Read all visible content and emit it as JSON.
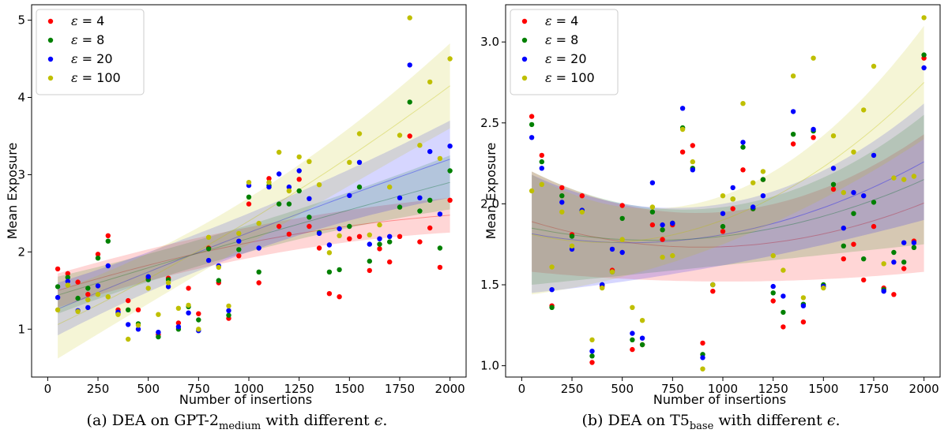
{
  "chart_data": [
    {
      "type": "scatter",
      "xlabel": "Number of insertions",
      "ylabel": "Mean Exposure",
      "xlim": [
        -80,
        2080
      ],
      "ylim": [
        0.38,
        5.2
      ],
      "xticks": [
        "0",
        "250",
        "500",
        "750",
        "1000",
        "1250",
        "1500",
        "1750",
        "2000"
      ],
      "yticks": [
        "1",
        "2",
        "3",
        "4",
        "5"
      ],
      "legend_position": "top-left",
      "grid": false,
      "caption": {
        "prefix": "(a)  DEA on GPT-2",
        "sub": "medium",
        "suffix": " with different ",
        "eps": "ϵ",
        "end": "."
      },
      "x": [
        50,
        100,
        150,
        200,
        250,
        300,
        350,
        400,
        450,
        500,
        550,
        600,
        650,
        700,
        750,
        800,
        850,
        900,
        950,
        1000,
        1050,
        1100,
        1150,
        1200,
        1250,
        1300,
        1350,
        1400,
        1450,
        1500,
        1550,
        1600,
        1650,
        1700,
        1750,
        1800,
        1850,
        1900,
        1950,
        2000
      ],
      "series": [
        {
          "name": "ε = 4",
          "color": "#ff0000",
          "values": [
            1.78,
            1.72,
            1.61,
            1.45,
            1.97,
            2.21,
            1.25,
            1.37,
            1.25,
            1.66,
            0.93,
            1.66,
            1.08,
            1.53,
            1.2,
            2.05,
            1.6,
            1.14,
            1.95,
            2.62,
            1.6,
            2.95,
            2.33,
            2.23,
            2.94,
            2.33,
            2.05,
            1.46,
            1.42,
            2.17,
            2.2,
            1.76,
            2.04,
            1.87,
            2.2,
            3.5,
            2.13,
            2.31,
            1.8,
            2.67
          ],
          "trend": [
            [
              1.28,
              1.72
            ],
            [
              1.92,
              2.32
            ],
            [
              2.25,
              2.7
            ]
          ],
          "trend_x": [
            50,
            1000,
            2000
          ]
        },
        {
          "name": "ε = 8",
          "color": "#008000",
          "values": [
            1.55,
            1.67,
            1.4,
            1.53,
            1.92,
            2.14,
            1.2,
            1.25,
            1.07,
            1.64,
            0.9,
            1.64,
            1.0,
            1.29,
            1.12,
            2.04,
            1.63,
            1.18,
            2.03,
            2.71,
            1.74,
            2.86,
            2.62,
            2.62,
            2.79,
            2.45,
            2.25,
            1.74,
            1.77,
            2.33,
            2.84,
            1.88,
            2.1,
            2.13,
            2.58,
            3.94,
            2.53,
            2.67,
            2.05,
            3.05
          ],
          "trend": [
            [
              1.2,
              1.68
            ],
            [
              2.0,
              2.35
            ],
            [
              2.55,
              3.25
            ]
          ],
          "trend_x": [
            50,
            1000,
            2000
          ]
        },
        {
          "name": "ε = 20",
          "color": "#0000ff",
          "values": [
            1.41,
            1.62,
            1.24,
            1.28,
            1.56,
            1.82,
            1.22,
            1.06,
            1.0,
            1.68,
            0.96,
            1.55,
            1.03,
            1.21,
            0.98,
            1.89,
            1.82,
            1.24,
            2.14,
            2.86,
            2.05,
            2.84,
            3.01,
            2.84,
            3.05,
            2.69,
            2.24,
            2.09,
            2.3,
            2.73,
            3.16,
            2.1,
            2.17,
            2.2,
            2.7,
            4.42,
            2.7,
            3.3,
            2.49,
            3.37
          ],
          "trend": [
            [
              0.92,
              1.6
            ],
            [
              2.0,
              2.5
            ],
            [
              2.7,
              3.7
            ]
          ],
          "trend_x": [
            50,
            1000,
            2000
          ]
        },
        {
          "name": "ε = 100",
          "color": "#bfbf00",
          "values": [
            1.25,
            1.57,
            1.23,
            1.38,
            1.45,
            1.42,
            1.19,
            0.87,
            1.05,
            1.53,
            1.19,
            1.6,
            1.27,
            1.31,
            1.0,
            2.19,
            1.8,
            1.3,
            2.24,
            2.9,
            2.37,
            2.9,
            3.29,
            2.79,
            3.23,
            3.17,
            2.87,
            1.99,
            2.21,
            3.16,
            3.53,
            2.22,
            2.35,
            2.84,
            3.51,
            5.03,
            3.38,
            4.2,
            3.21,
            4.5
          ],
          "trend": [
            [
              0.62,
              1.5
            ],
            [
              2.1,
              2.7
            ],
            [
              3.6,
              4.7
            ]
          ],
          "trend_x": [
            50,
            1000,
            2000
          ]
        }
      ]
    },
    {
      "type": "scatter",
      "xlabel": "Number of insertions",
      "ylabel": "Mean Exposure",
      "xlim": [
        -80,
        2080
      ],
      "ylim": [
        0.93,
        3.23
      ],
      "xticks": [
        "0",
        "250",
        "500",
        "750",
        "1000",
        "1250",
        "1500",
        "1750",
        "2000"
      ],
      "yticks": [
        "1.0",
        "1.5",
        "2.0",
        "2.5",
        "3.0"
      ],
      "legend_position": "top-left",
      "grid": false,
      "caption": {
        "prefix": "(b)  DEA on T5",
        "sub": "base",
        "suffix": " with different ",
        "eps": "ϵ",
        "end": "."
      },
      "x": [
        50,
        100,
        150,
        200,
        250,
        300,
        350,
        400,
        450,
        500,
        550,
        600,
        650,
        700,
        750,
        800,
        850,
        900,
        950,
        1000,
        1050,
        1100,
        1150,
        1200,
        1250,
        1300,
        1350,
        1400,
        1450,
        1500,
        1550,
        1600,
        1650,
        1700,
        1750,
        1800,
        1850,
        1900,
        1950,
        2000
      ],
      "series": [
        {
          "name": "ε = 4",
          "color": "#ff0000",
          "values": [
            2.54,
            2.3,
            1.37,
            2.1,
            1.81,
            2.05,
            1.02,
            1.49,
            1.59,
            1.99,
            1.1,
            1.13,
            1.87,
            1.78,
            1.87,
            2.32,
            2.36,
            1.14,
            1.46,
            1.83,
            1.97,
            2.21,
            1.97,
            2.15,
            1.4,
            1.24,
            2.37,
            1.27,
            2.41,
            1.49,
            2.09,
            1.66,
            1.75,
            1.53,
            1.86,
            1.48,
            1.44,
            1.6,
            1.77,
            2.9
          ],
          "trend": [
            [
              1.58,
              2.2
            ],
            [
              1.52,
              1.95
            ],
            [
              1.58,
              2.43
            ]
          ],
          "trend_x": [
            50,
            1000,
            2000
          ]
        },
        {
          "name": "ε = 8",
          "color": "#008000",
          "values": [
            2.49,
            2.26,
            1.36,
            2.05,
            1.8,
            1.96,
            1.06,
            1.5,
            1.58,
            1.91,
            1.16,
            1.13,
            1.95,
            1.84,
            1.88,
            2.47,
            2.22,
            1.07,
            1.5,
            1.86,
            2.03,
            2.35,
            1.97,
            2.15,
            1.45,
            1.33,
            2.43,
            1.38,
            2.45,
            1.5,
            2.12,
            1.74,
            1.94,
            1.66,
            2.01,
            1.47,
            1.7,
            1.64,
            1.73,
            2.92
          ],
          "trend": [
            [
              1.5,
              2.2
            ],
            [
              1.62,
              1.98
            ],
            [
              1.75,
              2.55
            ]
          ],
          "trend_x": [
            50,
            1000,
            2000
          ]
        },
        {
          "name": "ε = 20",
          "color": "#0000ff",
          "values": [
            2.41,
            2.22,
            1.47,
            2.01,
            1.72,
            1.96,
            1.09,
            1.5,
            1.72,
            1.7,
            1.2,
            1.17,
            2.13,
            1.87,
            1.88,
            2.59,
            2.21,
            1.05,
            1.5,
            1.94,
            2.1,
            2.38,
            1.98,
            2.05,
            1.49,
            1.43,
            2.57,
            1.37,
            2.46,
            1.49,
            2.22,
            1.85,
            2.07,
            2.05,
            2.3,
            1.46,
            1.64,
            1.76,
            1.76,
            2.84
          ],
          "trend": [
            [
              1.45,
              2.18
            ],
            [
              1.62,
              2.0
            ],
            [
              1.9,
              2.62
            ]
          ],
          "trend_x": [
            50,
            1000,
            2000
          ]
        },
        {
          "name": "ε = 100",
          "color": "#bfbf00",
          "values": [
            2.08,
            2.12,
            1.61,
            1.95,
            1.74,
            1.95,
            1.16,
            1.48,
            1.58,
            1.78,
            1.36,
            1.28,
            1.98,
            1.67,
            1.68,
            2.46,
            2.26,
            0.98,
            1.5,
            2.05,
            2.03,
            2.62,
            2.13,
            2.2,
            1.68,
            1.59,
            2.79,
            1.42,
            2.9,
            1.48,
            2.42,
            2.07,
            2.32,
            2.58,
            2.85,
            1.63,
            2.16,
            2.15,
            2.17,
            3.15
          ],
          "trend": [
            [
              1.44,
              2.18
            ],
            [
              1.75,
              2.05
            ],
            [
              2.4,
              3.1
            ]
          ],
          "trend_x": [
            50,
            1000,
            2000
          ]
        }
      ]
    }
  ]
}
